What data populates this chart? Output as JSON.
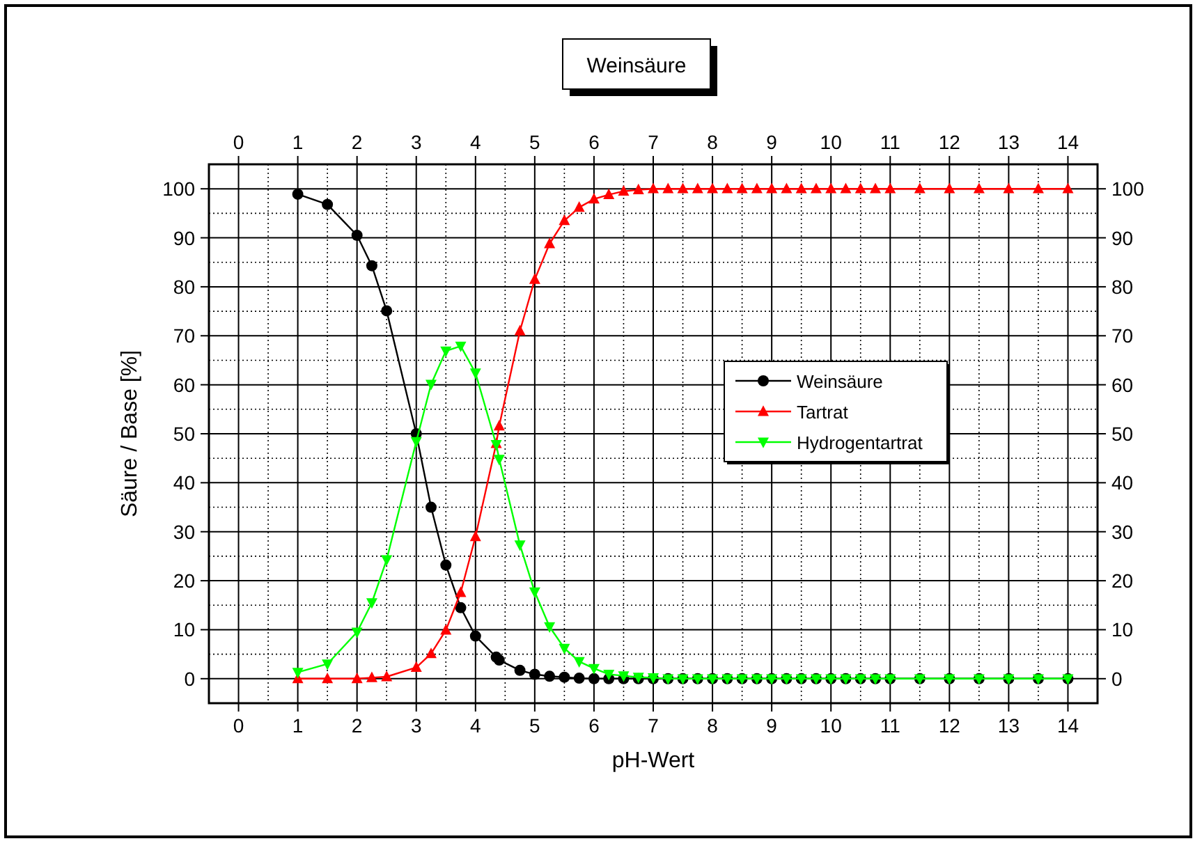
{
  "chart_data": {
    "type": "line",
    "title": "Weinsäure",
    "xlabel": "pH-Wert",
    "ylabel": "Säure / Base [%]",
    "x": [
      1,
      1.5,
      2,
      2.25,
      2.5,
      3,
      3.25,
      3.5,
      3.75,
      4,
      4.35,
      4.4,
      4.75,
      5,
      5.25,
      5.5,
      5.75,
      6,
      6.25,
      6.5,
      6.75,
      7,
      7.25,
      7.5,
      7.75,
      8,
      8.25,
      8.5,
      8.75,
      9,
      9.25,
      9.5,
      9.75,
      10,
      10.25,
      10.5,
      10.75,
      11,
      11.5,
      12,
      12.5,
      13,
      13.5,
      14
    ],
    "series": [
      {
        "name": "Weinsäure",
        "color": "#000000",
        "marker": "circle",
        "values": [
          98.9,
          96.8,
          90.5,
          84.3,
          75.1,
          50.0,
          35.0,
          23.2,
          14.5,
          8.7,
          4.4,
          3.8,
          1.7,
          0.9,
          0.5,
          0.3,
          0.1,
          0,
          0,
          0,
          0,
          0,
          0,
          0,
          0,
          0,
          0,
          0,
          0,
          0,
          0,
          0,
          0,
          0,
          0,
          0,
          0,
          0,
          0,
          0,
          0,
          0,
          0,
          0
        ]
      },
      {
        "name": "Tartrat",
        "color": "#ff0000",
        "marker": "triangle",
        "values": [
          0,
          0,
          0,
          0.2,
          0.4,
          2.3,
          5.1,
          9.9,
          17.6,
          29.0,
          48.0,
          51.6,
          71.0,
          81.5,
          88.8,
          93.5,
          96.2,
          97.9,
          98.8,
          99.5,
          99.8,
          100,
          100,
          100,
          100,
          100,
          100,
          100,
          100,
          100,
          100,
          100,
          100,
          100,
          100,
          100,
          100,
          100,
          100,
          100,
          100,
          100,
          100,
          100
        ]
      },
      {
        "name": "Hydrogentartrat",
        "color": "#00ff00",
        "marker": "triangle-down",
        "values": [
          1.3,
          3.0,
          9.5,
          15.5,
          24.3,
          48.4,
          60.1,
          66.9,
          67.9,
          62.4,
          47.8,
          44.8,
          27.3,
          17.7,
          10.6,
          6.2,
          3.5,
          2.1,
          0.9,
          0.6,
          0.3,
          0.2,
          0,
          0,
          0,
          0,
          0,
          0,
          0,
          0,
          0,
          0,
          0,
          0,
          0,
          0,
          0,
          0,
          0,
          0,
          0,
          0,
          0,
          0
        ]
      }
    ],
    "xlim": [
      -0.5,
      14.5
    ],
    "xticks": [
      0,
      1,
      2,
      3,
      4,
      5,
      6,
      7,
      8,
      9,
      10,
      11,
      12,
      13,
      14
    ],
    "x2lim": [
      -0.5,
      14.5
    ],
    "x2ticks": [
      0,
      1,
      2,
      3,
      4,
      5,
      6,
      7,
      8,
      9,
      10,
      11,
      12,
      13,
      14
    ],
    "ylim": [
      -5,
      105
    ],
    "yticks": [
      0,
      10,
      20,
      30,
      40,
      50,
      60,
      70,
      80,
      90,
      100
    ],
    "y2lim": [
      -5,
      105
    ],
    "y2ticks": [
      0,
      10,
      20,
      30,
      40,
      50,
      60,
      70,
      80,
      90,
      100
    ],
    "grid": true,
    "legend": "right",
    "line_style": "solid"
  }
}
